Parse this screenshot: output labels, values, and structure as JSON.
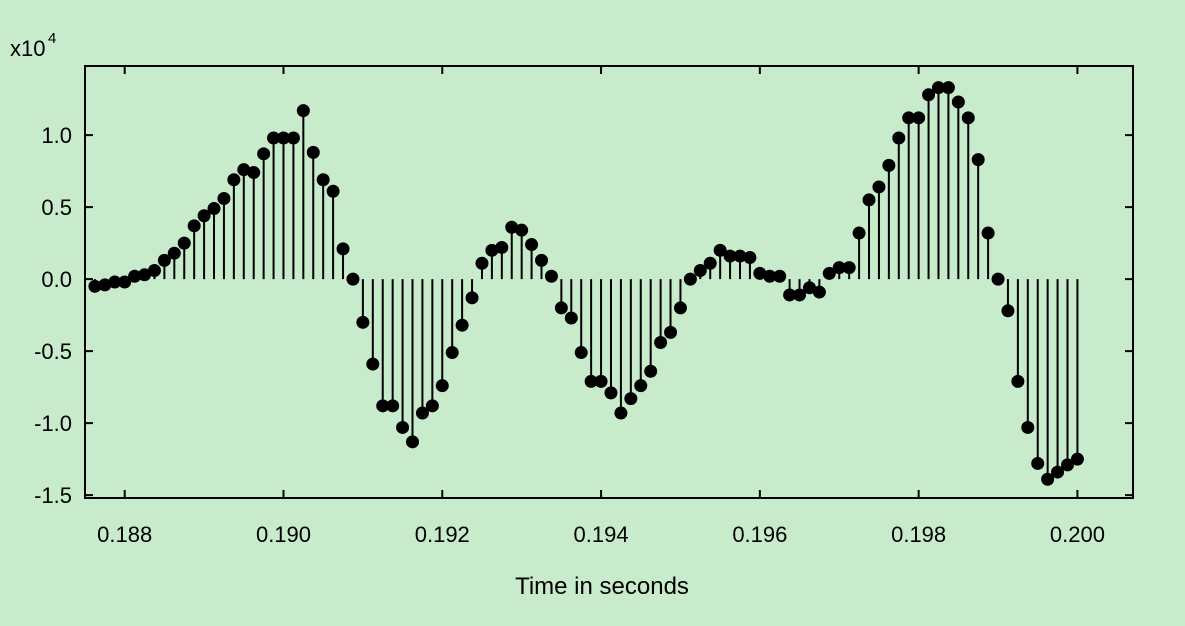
{
  "chart_data": {
    "type": "stem",
    "xlabel": "Time in seconds",
    "scale_label": "x10",
    "scale_exponent": "4",
    "xlim": [
      0.1875,
      0.2007
    ],
    "ylim": [
      -1.52,
      1.48
    ],
    "x_ticks": [
      0.188,
      0.19,
      0.192,
      0.194,
      0.196,
      0.198,
      0.2
    ],
    "x_tick_labels": [
      "0.188",
      "0.190",
      "0.192",
      "0.194",
      "0.196",
      "0.198",
      "0.200"
    ],
    "y_ticks": [
      -1.5,
      -1.0,
      -0.5,
      0.0,
      0.5,
      1.0
    ],
    "y_tick_labels": [
      "-1.5",
      "-1.0",
      "-0.5",
      "0.0",
      "0.5",
      "1.0"
    ],
    "x_start": 0.187625,
    "x_step": 0.000125,
    "values": [
      -0.05,
      -0.04,
      -0.02,
      -0.02,
      0.02,
      0.03,
      0.06,
      0.13,
      0.18,
      0.25,
      0.37,
      0.44,
      0.49,
      0.56,
      0.69,
      0.76,
      0.74,
      0.87,
      0.98,
      0.98,
      0.98,
      1.17,
      0.88,
      0.69,
      0.61,
      0.21,
      0.0,
      -0.3,
      -0.59,
      -0.88,
      -0.88,
      -1.03,
      -1.13,
      -0.93,
      -0.88,
      -0.74,
      -0.51,
      -0.32,
      -0.13,
      0.11,
      0.2,
      0.22,
      0.36,
      0.34,
      0.24,
      0.13,
      0.02,
      -0.2,
      -0.27,
      -0.51,
      -0.71,
      -0.71,
      -0.79,
      -0.93,
      -0.83,
      -0.74,
      -0.64,
      -0.44,
      -0.37,
      -0.2,
      0.0,
      0.06,
      0.11,
      0.2,
      0.16,
      0.16,
      0.15,
      0.04,
      0.02,
      0.02,
      -0.11,
      -0.11,
      -0.06,
      -0.09,
      0.04,
      0.08,
      0.08,
      0.32,
      0.55,
      0.64,
      0.79,
      0.98,
      1.12,
      1.12,
      1.28,
      1.33,
      1.33,
      1.23,
      1.12,
      0.83,
      0.32,
      0.0,
      -0.22,
      -0.71,
      -1.03,
      -1.28,
      -1.39,
      -1.34,
      -1.29,
      -1.25
    ],
    "grid": false,
    "legend": "none",
    "colors": {
      "background": "#c8ebcc",
      "marker": "#000000",
      "axis": "#000000"
    }
  }
}
